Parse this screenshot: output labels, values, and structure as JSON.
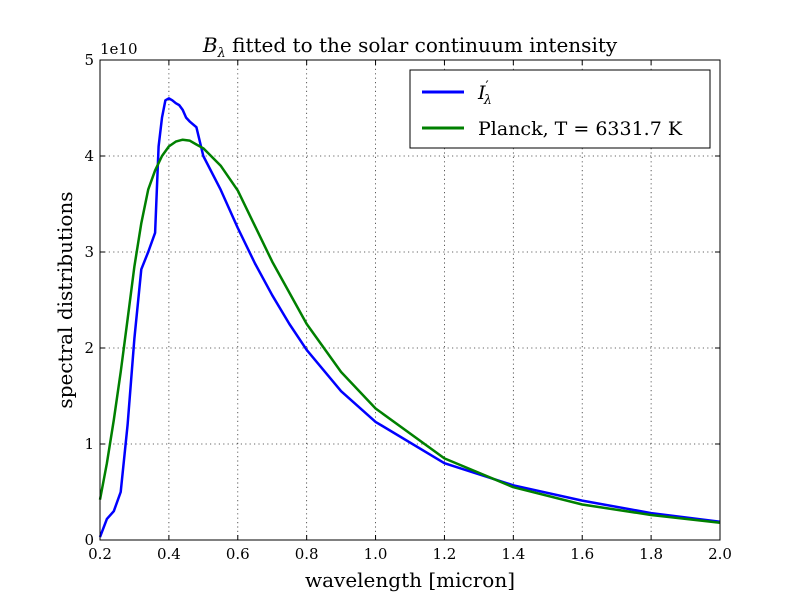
{
  "chart_data": {
    "type": "line",
    "title_prefix": "B",
    "title_subscript": "λ",
    "title_rest": " fitted to the solar continuum intensity",
    "xlabel": "wavelength [micron]",
    "ylabel": "spectral distributions",
    "y_offset_label": "1e10",
    "xlim": [
      0.2,
      2.0
    ],
    "ylim": [
      0,
      5
    ],
    "x_ticks": [
      0.2,
      0.4,
      0.6,
      0.8,
      1.0,
      1.2,
      1.4,
      1.6,
      1.8,
      2.0
    ],
    "x_tick_labels": [
      "0.2",
      "0.4",
      "0.6",
      "0.8",
      "1.0",
      "1.2",
      "1.4",
      "1.6",
      "1.8",
      "2.0"
    ],
    "y_ticks": [
      0,
      1,
      2,
      3,
      4,
      5
    ],
    "y_tick_labels": [
      "0",
      "1",
      "2",
      "3",
      "4",
      "5"
    ],
    "y_scale_note": "values in units of 1e10",
    "grid": true,
    "legend_position": "top-right",
    "series": [
      {
        "name_base": "I",
        "name_prime": "′",
        "name_subscript": "λ",
        "color": "#0000ff",
        "x": [
          0.2,
          0.22,
          0.24,
          0.26,
          0.28,
          0.3,
          0.32,
          0.34,
          0.36,
          0.37,
          0.38,
          0.39,
          0.4,
          0.41,
          0.42,
          0.43,
          0.44,
          0.45,
          0.46,
          0.48,
          0.5,
          0.55,
          0.6,
          0.65,
          0.7,
          0.75,
          0.8,
          0.9,
          1.0,
          1.2,
          1.4,
          1.6,
          1.8,
          2.0
        ],
        "y": [
          0.03,
          0.22,
          0.3,
          0.5,
          1.2,
          2.1,
          2.82,
          3.0,
          3.2,
          4.1,
          4.4,
          4.58,
          4.6,
          4.58,
          4.55,
          4.53,
          4.48,
          4.4,
          4.36,
          4.3,
          4.0,
          3.65,
          3.25,
          2.88,
          2.55,
          2.25,
          1.98,
          1.55,
          1.23,
          0.8,
          0.57,
          0.41,
          0.28,
          0.19
        ]
      },
      {
        "name": "Planck, T = 6331.7 K",
        "color": "#008000",
        "x": [
          0.2,
          0.22,
          0.24,
          0.26,
          0.28,
          0.3,
          0.32,
          0.34,
          0.36,
          0.38,
          0.4,
          0.42,
          0.44,
          0.46,
          0.48,
          0.5,
          0.55,
          0.6,
          0.7,
          0.8,
          0.9,
          1.0,
          1.2,
          1.4,
          1.6,
          1.8,
          2.0
        ],
        "y": [
          0.42,
          0.8,
          1.25,
          1.75,
          2.3,
          2.85,
          3.3,
          3.65,
          3.85,
          4.0,
          4.1,
          4.15,
          4.17,
          4.16,
          4.12,
          4.08,
          3.9,
          3.64,
          2.9,
          2.25,
          1.75,
          1.37,
          0.85,
          0.55,
          0.37,
          0.26,
          0.18
        ]
      }
    ]
  }
}
